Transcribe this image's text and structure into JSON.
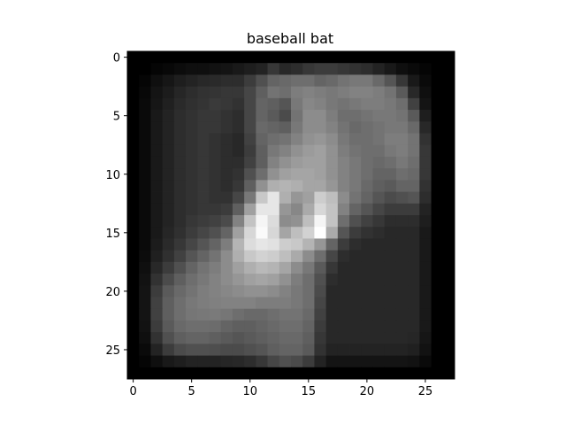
{
  "chart_data": {
    "type": "heatmap",
    "title": "baseball bat",
    "colormap": "gray",
    "rows": 28,
    "cols": 28,
    "x_ticks": [
      0,
      5,
      10,
      15,
      20,
      25
    ],
    "y_ticks": [
      0,
      5,
      10,
      15,
      20,
      25
    ],
    "xlim": [
      -0.5,
      27.5
    ],
    "ylim": [
      27.5,
      -0.5
    ],
    "grid": false,
    "legend": "none",
    "value_range": [
      0,
      255
    ],
    "values": [
      [
        0,
        0,
        0,
        0,
        0,
        0,
        0,
        0,
        0,
        0,
        0,
        0,
        0,
        0,
        0,
        0,
        0,
        0,
        0,
        0,
        0,
        0,
        0,
        0,
        0,
        0,
        0,
        0
      ],
      [
        0,
        0,
        5,
        8,
        12,
        15,
        15,
        18,
        20,
        25,
        30,
        35,
        55,
        40,
        45,
        55,
        60,
        60,
        55,
        50,
        45,
        35,
        25,
        15,
        10,
        5,
        0,
        0
      ],
      [
        0,
        5,
        15,
        22,
        30,
        35,
        40,
        42,
        45,
        45,
        60,
        80,
        100,
        105,
        110,
        110,
        100,
        105,
        115,
        120,
        120,
        105,
        85,
        55,
        25,
        10,
        0,
        0
      ],
      [
        0,
        8,
        20,
        28,
        38,
        45,
        50,
        52,
        55,
        55,
        70,
        95,
        115,
        110,
        125,
        130,
        125,
        120,
        125,
        130,
        130,
        125,
        115,
        90,
        40,
        15,
        0,
        0
      ],
      [
        0,
        10,
        22,
        32,
        42,
        48,
        52,
        58,
        55,
        50,
        70,
        100,
        95,
        85,
        120,
        135,
        130,
        120,
        115,
        120,
        125,
        125,
        120,
        110,
        65,
        20,
        0,
        0
      ],
      [
        0,
        10,
        25,
        35,
        45,
        50,
        55,
        55,
        50,
        45,
        70,
        100,
        90,
        75,
        115,
        140,
        140,
        125,
        110,
        110,
        115,
        120,
        120,
        115,
        90,
        30,
        0,
        0
      ],
      [
        0,
        10,
        25,
        35,
        45,
        50,
        55,
        55,
        50,
        45,
        70,
        105,
        100,
        95,
        120,
        140,
        140,
        130,
        115,
        105,
        110,
        115,
        120,
        120,
        105,
        40,
        0,
        0
      ],
      [
        0,
        10,
        25,
        35,
        45,
        50,
        55,
        50,
        45,
        40,
        65,
        100,
        110,
        115,
        130,
        145,
        150,
        140,
        120,
        110,
        110,
        115,
        125,
        125,
        115,
        50,
        0,
        0
      ],
      [
        0,
        10,
        25,
        35,
        45,
        50,
        55,
        50,
        45,
        40,
        60,
        95,
        120,
        130,
        145,
        155,
        160,
        145,
        125,
        115,
        110,
        110,
        120,
        125,
        115,
        55,
        0,
        0
      ],
      [
        0,
        10,
        25,
        35,
        45,
        50,
        55,
        50,
        45,
        45,
        65,
        95,
        130,
        145,
        155,
        160,
        160,
        145,
        130,
        120,
        110,
        105,
        110,
        120,
        110,
        55,
        0,
        0
      ],
      [
        0,
        10,
        25,
        35,
        45,
        50,
        55,
        50,
        45,
        50,
        80,
        110,
        145,
        160,
        165,
        165,
        160,
        145,
        130,
        120,
        110,
        100,
        100,
        110,
        105,
        55,
        0,
        0
      ],
      [
        0,
        10,
        25,
        35,
        45,
        50,
        55,
        50,
        45,
        55,
        95,
        145,
        175,
        180,
        175,
        165,
        165,
        150,
        130,
        120,
        105,
        95,
        90,
        100,
        100,
        50,
        0,
        0
      ],
      [
        0,
        10,
        25,
        35,
        45,
        50,
        55,
        50,
        50,
        70,
        120,
        200,
        230,
        175,
        150,
        160,
        205,
        190,
        140,
        115,
        100,
        85,
        75,
        80,
        85,
        45,
        0,
        0
      ],
      [
        0,
        10,
        25,
        35,
        45,
        50,
        55,
        55,
        60,
        95,
        160,
        230,
        230,
        150,
        135,
        170,
        215,
        195,
        130,
        100,
        85,
        70,
        60,
        60,
        60,
        35,
        0,
        0
      ],
      [
        0,
        10,
        25,
        35,
        45,
        55,
        60,
        65,
        75,
        130,
        195,
        245,
        220,
        140,
        145,
        190,
        245,
        195,
        110,
        80,
        65,
        55,
        45,
        45,
        45,
        30,
        0,
        0
      ],
      [
        0,
        10,
        25,
        38,
        48,
        60,
        70,
        80,
        100,
        160,
        215,
        250,
        215,
        165,
        190,
        210,
        255,
        170,
        85,
        60,
        50,
        45,
        40,
        40,
        40,
        25,
        0,
        0
      ],
      [
        0,
        10,
        28,
        42,
        55,
        70,
        85,
        100,
        125,
        180,
        220,
        230,
        225,
        205,
        200,
        180,
        150,
        100,
        60,
        45,
        40,
        40,
        40,
        40,
        40,
        25,
        0,
        0
      ],
      [
        0,
        12,
        32,
        48,
        65,
        85,
        100,
        115,
        140,
        175,
        200,
        210,
        205,
        190,
        170,
        140,
        110,
        70,
        45,
        40,
        40,
        40,
        40,
        40,
        40,
        25,
        0,
        0
      ],
      [
        0,
        15,
        40,
        60,
        80,
        100,
        115,
        125,
        140,
        160,
        175,
        185,
        180,
        165,
        140,
        120,
        90,
        55,
        40,
        40,
        40,
        40,
        40,
        40,
        40,
        25,
        0,
        0
      ],
      [
        0,
        18,
        50,
        75,
        95,
        110,
        120,
        130,
        140,
        150,
        160,
        165,
        160,
        145,
        125,
        110,
        80,
        45,
        40,
        40,
        40,
        40,
        40,
        40,
        40,
        25,
        0,
        0
      ],
      [
        0,
        20,
        60,
        90,
        105,
        115,
        125,
        130,
        135,
        140,
        145,
        145,
        140,
        130,
        120,
        110,
        75,
        40,
        40,
        40,
        40,
        40,
        40,
        40,
        40,
        25,
        0,
        0
      ],
      [
        0,
        20,
        65,
        95,
        110,
        120,
        125,
        128,
        130,
        130,
        130,
        125,
        125,
        125,
        120,
        110,
        70,
        40,
        40,
        40,
        40,
        40,
        40,
        40,
        40,
        25,
        0,
        0
      ],
      [
        0,
        20,
        65,
        95,
        110,
        118,
        120,
        122,
        118,
        110,
        105,
        105,
        110,
        115,
        115,
        105,
        65,
        40,
        40,
        40,
        40,
        40,
        40,
        40,
        40,
        25,
        0,
        0
      ],
      [
        0,
        18,
        60,
        90,
        105,
        110,
        110,
        108,
        100,
        95,
        95,
        100,
        105,
        110,
        110,
        100,
        60,
        40,
        40,
        40,
        40,
        40,
        40,
        40,
        40,
        25,
        0,
        0
      ],
      [
        0,
        15,
        50,
        80,
        95,
        100,
        100,
        95,
        90,
        85,
        90,
        95,
        100,
        105,
        105,
        95,
        55,
        40,
        40,
        40,
        40,
        40,
        40,
        40,
        38,
        22,
        0,
        0
      ],
      [
        0,
        10,
        35,
        60,
        75,
        80,
        80,
        78,
        75,
        75,
        80,
        85,
        95,
        100,
        100,
        90,
        50,
        35,
        35,
        35,
        35,
        35,
        35,
        35,
        32,
        18,
        0,
        0
      ],
      [
        0,
        5,
        15,
        25,
        30,
        35,
        35,
        35,
        38,
        40,
        45,
        55,
        70,
        80,
        75,
        60,
        35,
        20,
        20,
        20,
        20,
        20,
        20,
        20,
        18,
        10,
        0,
        0
      ],
      [
        0,
        0,
        0,
        0,
        0,
        0,
        0,
        0,
        0,
        0,
        0,
        0,
        0,
        0,
        0,
        0,
        0,
        0,
        0,
        0,
        0,
        0,
        0,
        0,
        0,
        0,
        0,
        0
      ]
    ]
  }
}
